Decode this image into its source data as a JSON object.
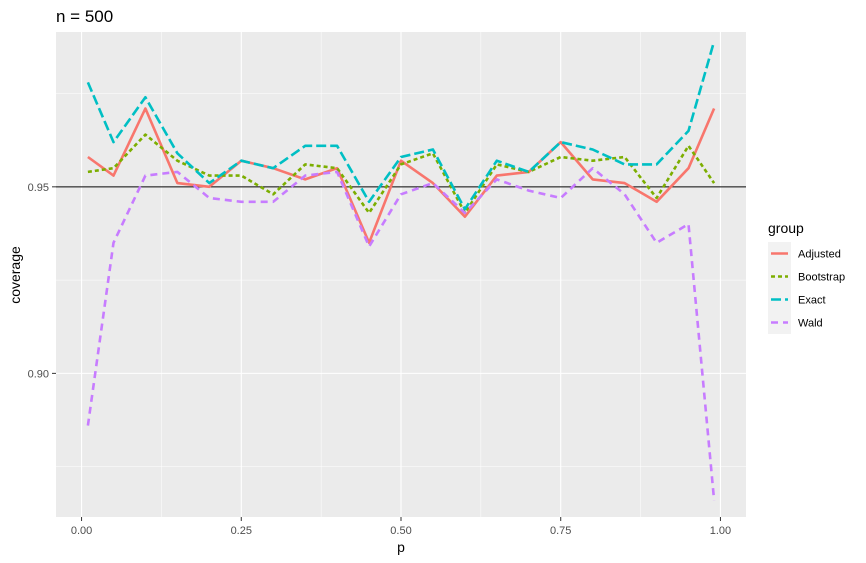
{
  "chart_data": {
    "type": "line",
    "title": "n = 500",
    "xlabel": "p",
    "ylabel": "coverage",
    "xlim": [
      -0.04,
      1.04
    ],
    "ylim": [
      0.8615,
      0.9915
    ],
    "x_ticks": [
      0.0,
      0.25,
      0.5,
      0.75,
      1.0
    ],
    "x_tick_labels": [
      "0.00",
      "0.25",
      "0.50",
      "0.75",
      "1.00"
    ],
    "y_ticks": [
      0.9,
      0.95
    ],
    "y_tick_labels": [
      "0.90",
      "0.95"
    ],
    "reference_line": {
      "y": 0.95,
      "color": "#000000"
    },
    "grid": true,
    "legend": {
      "title": "group",
      "placement": "right"
    },
    "x": [
      0.01,
      0.05,
      0.1,
      0.15,
      0.2,
      0.25,
      0.3,
      0.35,
      0.4,
      0.45,
      0.5,
      0.55,
      0.6,
      0.65,
      0.7,
      0.75,
      0.8,
      0.85,
      0.9,
      0.95,
      0.99
    ],
    "series": [
      {
        "name": "Adjusted",
        "color": "#F8766D",
        "dash": "solid",
        "values": [
          0.958,
          0.953,
          0.971,
          0.951,
          0.95,
          0.957,
          0.955,
          0.952,
          0.955,
          0.935,
          0.957,
          0.951,
          0.942,
          0.953,
          0.954,
          0.962,
          0.952,
          0.951,
          0.946,
          0.955,
          0.971
        ]
      },
      {
        "name": "Bootstrap",
        "color": "#7CAE00",
        "dash": "short",
        "values": [
          0.954,
          0.955,
          0.964,
          0.957,
          0.953,
          0.953,
          0.948,
          0.956,
          0.955,
          0.943,
          0.956,
          0.959,
          0.943,
          0.956,
          0.954,
          0.958,
          0.957,
          0.958,
          0.947,
          0.961,
          0.951
        ]
      },
      {
        "name": "Exact",
        "color": "#00BFC4",
        "dash": "long",
        "values": [
          0.978,
          0.962,
          0.974,
          0.959,
          0.951,
          0.957,
          0.955,
          0.961,
          0.961,
          0.946,
          0.958,
          0.96,
          0.944,
          0.957,
          0.954,
          0.962,
          0.96,
          0.956,
          0.956,
          0.965,
          0.989
        ]
      },
      {
        "name": "Wald",
        "color": "#C77CFF",
        "dash": "medium",
        "values": [
          0.886,
          0.935,
          0.953,
          0.954,
          0.947,
          0.946,
          0.946,
          0.953,
          0.954,
          0.934,
          0.948,
          0.951,
          0.943,
          0.952,
          0.949,
          0.947,
          0.955,
          0.948,
          0.935,
          0.94,
          0.866
        ]
      }
    ]
  }
}
